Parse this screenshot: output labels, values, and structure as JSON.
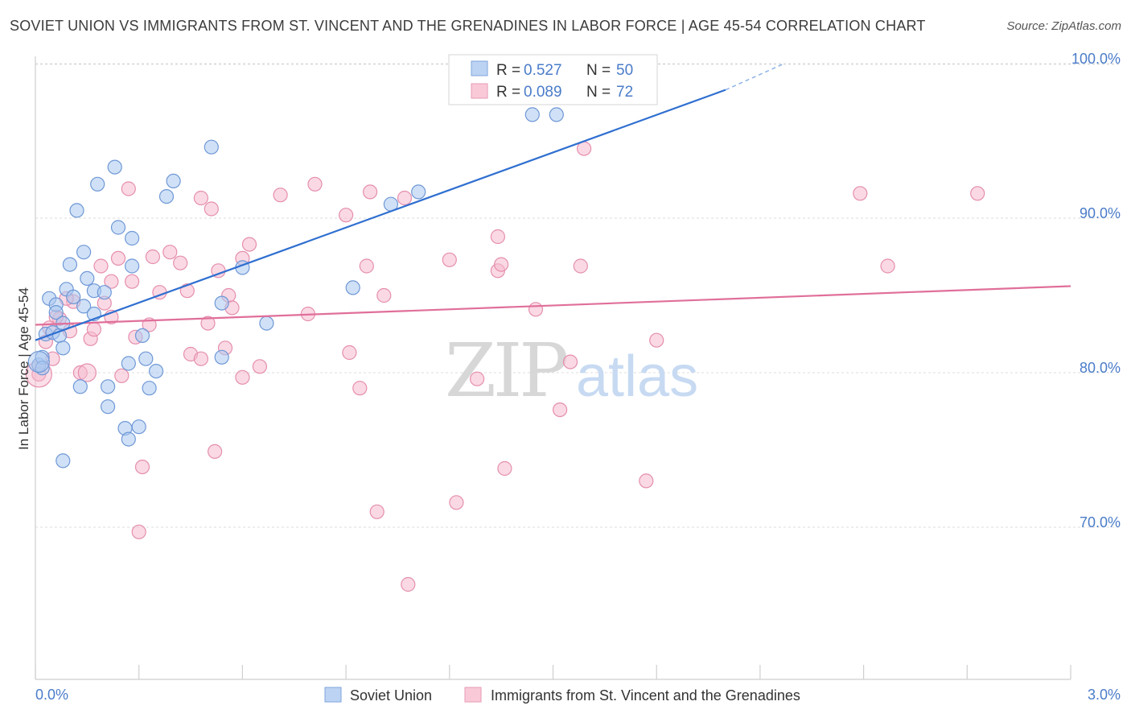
{
  "title": "SOVIET UNION VS IMMIGRANTS FROM ST. VINCENT AND THE GRENADINES IN LABOR FORCE | AGE 45-54 CORRELATION CHART",
  "source": "Source: ZipAtlas.com",
  "colors": {
    "blue": "#4a7cc9",
    "blue_fill": "#a9c8f0",
    "pink": "#e06f9a",
    "pink_fill": "#f6b9cd",
    "grid": "#d8d8d8"
  },
  "chart_data": {
    "type": "scatter",
    "xlabel": "",
    "ylabel": "In Labor Force | Age 45-54",
    "xlim": [
      0,
      3.0
    ],
    "ylim": [
      60.3,
      101.5
    ],
    "x_tick_labels": [
      "0.0%",
      "3.0%"
    ],
    "y_ticks": [
      70,
      80,
      90,
      100
    ],
    "y_tick_labels": [
      "70.0%",
      "80.0%",
      "90.0%",
      "100.0%"
    ],
    "grid": true,
    "legend_placement": "top-center",
    "legend": [
      {
        "r_label": "R =",
        "r_value": "0.527",
        "n_label": "N =",
        "n_value": "50"
      },
      {
        "r_label": "R =",
        "r_value": "0.089",
        "n_label": "N =",
        "n_value": "72"
      }
    ],
    "watermark": {
      "part1": "ZIP",
      "part2": "atlas"
    },
    "series": [
      {
        "name": "Soviet Union",
        "color": "#4a7cc9",
        "trend": {
          "x0": 0.0,
          "y0": 82.1,
          "x1": 2.0,
          "y1": 98.3,
          "dash_x1": 2.17,
          "dash_y1": 100.0
        },
        "points": [
          [
            0.01,
            80.5
          ],
          [
            0.02,
            81.0
          ],
          [
            0.03,
            82.5
          ],
          [
            0.04,
            84.8
          ],
          [
            0.05,
            82.6
          ],
          [
            0.06,
            84.4
          ],
          [
            0.06,
            83.9
          ],
          [
            0.07,
            82.4
          ],
          [
            0.08,
            83.2
          ],
          [
            0.08,
            81.6
          ],
          [
            0.09,
            85.4
          ],
          [
            0.1,
            87.0
          ],
          [
            0.11,
            84.9
          ],
          [
            0.12,
            90.5
          ],
          [
            0.13,
            79.1
          ],
          [
            0.14,
            84.3
          ],
          [
            0.14,
            87.8
          ],
          [
            0.15,
            86.1
          ],
          [
            0.17,
            83.8
          ],
          [
            0.17,
            85.3
          ],
          [
            0.18,
            92.2
          ],
          [
            0.2,
            85.2
          ],
          [
            0.21,
            79.1
          ],
          [
            0.21,
            77.8
          ],
          [
            0.23,
            93.3
          ],
          [
            0.24,
            89.4
          ],
          [
            0.26,
            76.4
          ],
          [
            0.27,
            75.7
          ],
          [
            0.27,
            80.6
          ],
          [
            0.28,
            88.7
          ],
          [
            0.28,
            86.9
          ],
          [
            0.3,
            76.5
          ],
          [
            0.31,
            82.4
          ],
          [
            0.32,
            80.9
          ],
          [
            0.33,
            79.0
          ],
          [
            0.35,
            80.1
          ],
          [
            0.38,
            91.4
          ],
          [
            0.4,
            92.4
          ],
          [
            0.08,
            74.3
          ],
          [
            0.51,
            94.6
          ],
          [
            0.54,
            81.0
          ],
          [
            0.54,
            84.5
          ],
          [
            0.6,
            86.8
          ],
          [
            0.67,
            83.2
          ],
          [
            0.92,
            85.5
          ],
          [
            1.03,
            90.9
          ],
          [
            1.11,
            91.7
          ],
          [
            1.44,
            96.7
          ],
          [
            1.51,
            96.7
          ],
          [
            0.02,
            80.3
          ]
        ]
      },
      {
        "name": "Immigrants from St. Vincent and the Grenadines",
        "color": "#e06f9a",
        "trend": {
          "x0": 0.0,
          "y0": 83.1,
          "x1": 3.0,
          "y1": 85.6
        },
        "points": [
          [
            0.01,
            79.9
          ],
          [
            0.03,
            82.0
          ],
          [
            0.05,
            80.9
          ],
          [
            0.07,
            83.5
          ],
          [
            0.1,
            82.7
          ],
          [
            0.11,
            84.6
          ],
          [
            0.13,
            80.0
          ],
          [
            0.16,
            82.2
          ],
          [
            0.17,
            82.8
          ],
          [
            0.19,
            86.9
          ],
          [
            0.2,
            84.5
          ],
          [
            0.22,
            83.6
          ],
          [
            0.22,
            85.9
          ],
          [
            0.24,
            87.4
          ],
          [
            0.25,
            79.8
          ],
          [
            0.27,
            91.9
          ],
          [
            0.28,
            85.9
          ],
          [
            0.29,
            82.3
          ],
          [
            0.3,
            69.7
          ],
          [
            0.31,
            73.9
          ],
          [
            0.33,
            83.1
          ],
          [
            0.34,
            87.5
          ],
          [
            0.36,
            85.2
          ],
          [
            0.39,
            87.8
          ],
          [
            0.42,
            87.1
          ],
          [
            0.44,
            85.3
          ],
          [
            0.45,
            81.2
          ],
          [
            0.48,
            91.3
          ],
          [
            0.48,
            80.9
          ],
          [
            0.5,
            83.2
          ],
          [
            0.51,
            90.6
          ],
          [
            0.52,
            74.9
          ],
          [
            0.53,
            86.6
          ],
          [
            0.55,
            81.6
          ],
          [
            0.56,
            85.0
          ],
          [
            0.57,
            84.2
          ],
          [
            0.6,
            87.4
          ],
          [
            0.6,
            79.7
          ],
          [
            0.62,
            88.3
          ],
          [
            0.65,
            80.4
          ],
          [
            0.71,
            91.5
          ],
          [
            0.79,
            83.8
          ],
          [
            0.81,
            92.2
          ],
          [
            0.9,
            90.2
          ],
          [
            0.91,
            81.3
          ],
          [
            0.94,
            79.0
          ],
          [
            0.96,
            86.9
          ],
          [
            0.97,
            91.7
          ],
          [
            0.99,
            71.0
          ],
          [
            1.01,
            85.0
          ],
          [
            1.07,
            91.3
          ],
          [
            1.08,
            66.3
          ],
          [
            1.2,
            87.3
          ],
          [
            1.22,
            71.6
          ],
          [
            1.28,
            79.6
          ],
          [
            1.34,
            86.6
          ],
          [
            1.34,
            88.8
          ],
          [
            1.35,
            87.0
          ],
          [
            1.36,
            73.8
          ],
          [
            1.45,
            84.1
          ],
          [
            1.52,
            77.6
          ],
          [
            1.55,
            80.7
          ],
          [
            1.58,
            86.9
          ],
          [
            1.59,
            94.5
          ],
          [
            1.77,
            73.0
          ],
          [
            1.8,
            82.1
          ],
          [
            2.39,
            91.6
          ],
          [
            2.47,
            86.9
          ],
          [
            2.73,
            91.6
          ],
          [
            0.06,
            83.6
          ],
          [
            0.09,
            84.8
          ],
          [
            0.04,
            82.9
          ]
        ]
      }
    ]
  }
}
